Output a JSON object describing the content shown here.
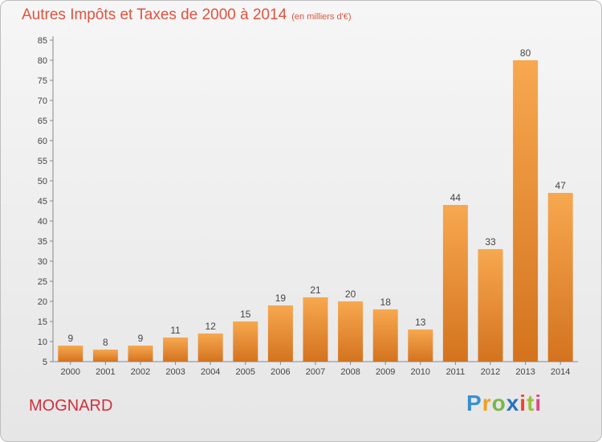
{
  "header": {
    "title": "Autres Impôts et Taxes de 2000 à 2014",
    "unit": "(en milliers d'€)"
  },
  "commune": "MOGNARD",
  "logo": {
    "text": "Proxiti"
  },
  "colors": {
    "bar": "#f0a050",
    "bar_dark": "#d8782a",
    "title": "#e0533e",
    "commune": "#d0303c"
  },
  "chart_data": {
    "type": "bar",
    "title": "Autres Impôts et Taxes de 2000 à 2014",
    "xlabel": "",
    "ylabel": "",
    "categories": [
      "2000",
      "2001",
      "2002",
      "2003",
      "2004",
      "2005",
      "2006",
      "2007",
      "2008",
      "2009",
      "2010",
      "2011",
      "2012",
      "2013",
      "2014"
    ],
    "values": [
      9,
      8,
      9,
      11,
      12,
      15,
      19,
      21,
      20,
      18,
      13,
      44,
      33,
      80,
      47
    ],
    "ylim": [
      5,
      85
    ],
    "yticks": [
      5,
      10,
      15,
      20,
      25,
      30,
      35,
      40,
      45,
      50,
      55,
      60,
      65,
      70,
      75,
      80,
      85
    ],
    "grid": false
  }
}
